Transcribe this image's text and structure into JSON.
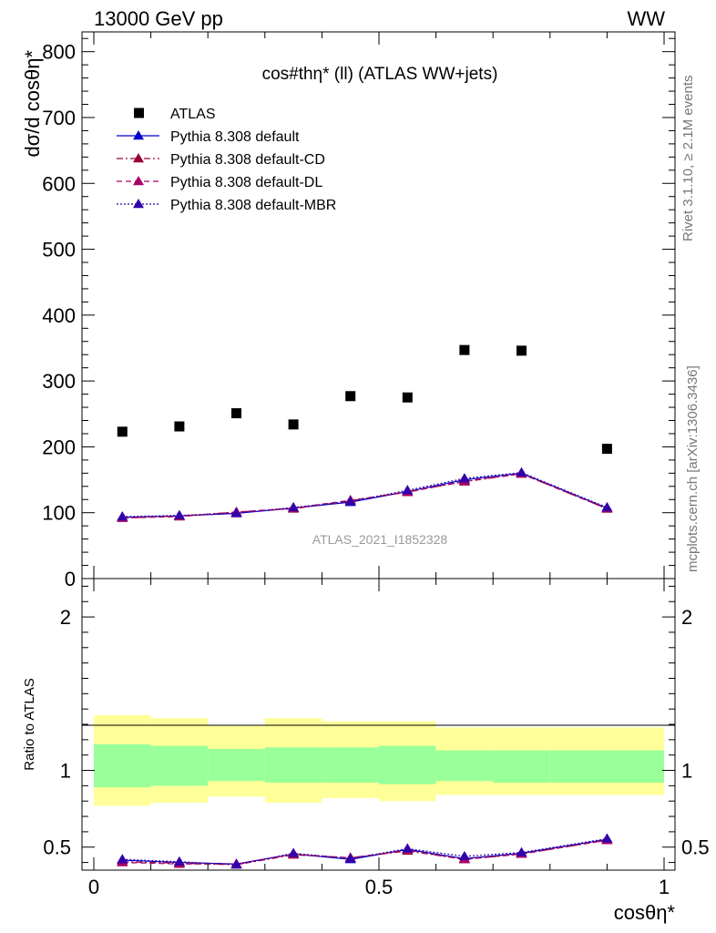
{
  "header": {
    "left": "13000 GeV pp",
    "right": "WW"
  },
  "side_labels": {
    "rivet": "Rivet 3.1.10, ≥ 2.1M events",
    "mcplots": "mcplots.cern.ch [arXiv:1306.3436]"
  },
  "watermark": "ATLAS_2021_I1852328",
  "colors": {
    "data": "#000000",
    "default": "#0000cc",
    "default_cd": "#990033",
    "default_dl": "#aa0066",
    "default_mbr": "#3300aa",
    "band_outer": "#ffff99",
    "band_inner": "#99ff99"
  },
  "chart_data": [
    {
      "type": "scatter",
      "panel": "main",
      "title": "cos#thη* (ll) (ATLAS WW+jets)",
      "ylabel": "dσ/d cosθη*",
      "xlim": [
        0,
        1
      ],
      "ylim": [
        0,
        830
      ],
      "yticks": [
        0,
        100,
        200,
        300,
        400,
        500,
        600,
        700,
        800
      ],
      "legend_placement": "top-left",
      "x": [
        0.05,
        0.15,
        0.25,
        0.35,
        0.45,
        0.55,
        0.65,
        0.75,
        0.9
      ],
      "series": [
        {
          "name": "ATLAS",
          "style": "marker-square",
          "values": [
            223,
            231,
            251,
            234,
            277,
            275,
            347,
            346,
            197
          ]
        },
        {
          "name": "Pythia 8.308 default",
          "style": "solid",
          "values": [
            93,
            95,
            99,
            107,
            116,
            132,
            150,
            160,
            107
          ]
        },
        {
          "name": "Pythia 8.308 default-CD",
          "style": "dashdot",
          "values": [
            92,
            95,
            101,
            106,
            118,
            132,
            147,
            159,
            106
          ]
        },
        {
          "name": "Pythia 8.308 default-DL",
          "style": "dashed",
          "values": [
            92,
            94,
            101,
            107,
            119,
            131,
            148,
            159,
            106
          ]
        },
        {
          "name": "Pythia 8.308 default-MBR",
          "style": "dotted",
          "values": [
            94,
            96,
            99,
            108,
            117,
            134,
            152,
            161,
            108
          ]
        }
      ]
    },
    {
      "type": "line",
      "panel": "ratio",
      "ylabel": "Ratio to ATLAS",
      "xlabel": "cosθη*",
      "xlim": [
        0,
        1
      ],
      "ylim": [
        0.35,
        2.25
      ],
      "yticks": [
        0.5,
        1,
        2
      ],
      "xticks": [
        0,
        0.5,
        1
      ],
      "x": [
        0.05,
        0.15,
        0.25,
        0.35,
        0.45,
        0.55,
        0.65,
        0.75,
        0.9
      ],
      "bins": [
        [
          0,
          0.1
        ],
        [
          0.1,
          0.2
        ],
        [
          0.2,
          0.3
        ],
        [
          0.3,
          0.4
        ],
        [
          0.4,
          0.5
        ],
        [
          0.5,
          0.6
        ],
        [
          0.6,
          0.7
        ],
        [
          0.7,
          0.8
        ],
        [
          0.8,
          1.0
        ]
      ],
      "band_inner": [
        [
          0.89,
          1.17
        ],
        [
          0.9,
          1.16
        ],
        [
          0.93,
          1.14
        ],
        [
          0.92,
          1.15
        ],
        [
          0.92,
          1.15
        ],
        [
          0.91,
          1.16
        ],
        [
          0.93,
          1.13
        ],
        [
          0.92,
          1.13
        ],
        [
          0.92,
          1.13
        ]
      ],
      "band_outer": [
        [
          0.77,
          1.36
        ],
        [
          0.79,
          1.34
        ],
        [
          0.83,
          1.29
        ],
        [
          0.79,
          1.34
        ],
        [
          0.82,
          1.32
        ],
        [
          0.8,
          1.32
        ],
        [
          0.84,
          1.28
        ],
        [
          0.84,
          1.28
        ],
        [
          0.84,
          1.28
        ]
      ],
      "series": [
        {
          "name": "Pythia 8.308 default",
          "style": "solid",
          "values": [
            0.415,
            0.4,
            0.39,
            0.455,
            0.42,
            0.485,
            0.425,
            0.46,
            0.55
          ]
        },
        {
          "name": "Pythia 8.308 default-CD",
          "style": "dashdot",
          "values": [
            0.405,
            0.395,
            0.385,
            0.45,
            0.43,
            0.475,
            0.42,
            0.455,
            0.545
          ]
        },
        {
          "name": "Pythia 8.308 default-DL",
          "style": "dashed",
          "values": [
            0.4,
            0.39,
            0.39,
            0.455,
            0.43,
            0.48,
            0.42,
            0.455,
            0.545
          ]
        },
        {
          "name": "Pythia 8.308 default-MBR",
          "style": "dotted",
          "values": [
            0.42,
            0.405,
            0.385,
            0.46,
            0.425,
            0.49,
            0.44,
            0.465,
            0.555
          ]
        }
      ]
    }
  ]
}
